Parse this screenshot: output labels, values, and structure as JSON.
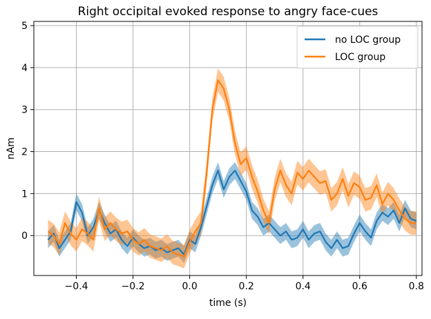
{
  "chart_data": {
    "type": "line",
    "title": "Right occipital evoked response to angry face-cues",
    "xlabel": "time (s)",
    "ylabel": "nAm",
    "xlim": [
      -0.55,
      0.82
    ],
    "ylim": [
      -0.95,
      5.1
    ],
    "xticks": [
      -0.4,
      -0.2,
      0.0,
      0.2,
      0.4,
      0.6,
      0.8
    ],
    "xtick_labels": [
      "−0.4",
      "−0.2",
      "0.0",
      "0.2",
      "0.4",
      "0.6",
      "0.8"
    ],
    "yticks": [
      0,
      1,
      2,
      3,
      4,
      5
    ],
    "ytick_labels": [
      "0",
      "1",
      "2",
      "3",
      "4",
      "5"
    ],
    "grid": true,
    "legend_position": "top-right",
    "x": [
      -0.5,
      -0.48,
      -0.46,
      -0.44,
      -0.42,
      -0.4,
      -0.38,
      -0.36,
      -0.34,
      -0.32,
      -0.3,
      -0.28,
      -0.26,
      -0.24,
      -0.22,
      -0.2,
      -0.18,
      -0.16,
      -0.14,
      -0.12,
      -0.1,
      -0.08,
      -0.06,
      -0.04,
      -0.02,
      0.0,
      0.02,
      0.04,
      0.06,
      0.08,
      0.1,
      0.12,
      0.14,
      0.16,
      0.18,
      0.2,
      0.22,
      0.24,
      0.26,
      0.28,
      0.3,
      0.32,
      0.34,
      0.36,
      0.38,
      0.4,
      0.42,
      0.44,
      0.46,
      0.48,
      0.5,
      0.52,
      0.54,
      0.56,
      0.58,
      0.6,
      0.62,
      0.64,
      0.66,
      0.68,
      0.7,
      0.72,
      0.74,
      0.76,
      0.78,
      0.8
    ],
    "series": [
      {
        "name": "no LOC group",
        "color": "#1f77b4",
        "values": [
          -0.1,
          0.05,
          -0.3,
          -0.1,
          0.1,
          0.8,
          0.55,
          0.0,
          0.2,
          0.6,
          0.3,
          0.05,
          0.15,
          -0.1,
          -0.25,
          -0.05,
          -0.2,
          -0.3,
          -0.25,
          -0.35,
          -0.3,
          -0.4,
          -0.35,
          -0.3,
          -0.45,
          -0.1,
          -0.2,
          0.2,
          0.7,
          1.2,
          1.55,
          1.1,
          1.4,
          1.55,
          1.3,
          1.05,
          0.6,
          0.45,
          0.2,
          0.3,
          0.15,
          0.0,
          0.1,
          -0.1,
          -0.05,
          0.15,
          -0.1,
          0.05,
          0.1,
          -0.15,
          -0.3,
          -0.1,
          -0.3,
          -0.25,
          0.05,
          0.3,
          0.1,
          -0.05,
          0.35,
          0.55,
          0.45,
          0.6,
          0.3,
          0.65,
          0.4,
          0.35
        ]
      },
      {
        "name": "LOC group",
        "color": "#ff7f0e",
        "values": [
          0.1,
          0.0,
          -0.2,
          0.3,
          0.05,
          -0.1,
          0.15,
          0.05,
          -0.1,
          0.65,
          0.15,
          0.3,
          0.15,
          0.05,
          0.1,
          -0.1,
          -0.2,
          -0.1,
          -0.25,
          -0.3,
          -0.35,
          -0.25,
          -0.4,
          -0.45,
          -0.5,
          -0.15,
          0.1,
          0.3,
          1.5,
          3.0,
          3.7,
          3.5,
          3.0,
          2.2,
          1.7,
          1.85,
          1.4,
          1.05,
          0.6,
          0.3,
          1.1,
          1.55,
          1.2,
          1.0,
          1.5,
          1.35,
          1.55,
          1.4,
          1.25,
          1.3,
          0.85,
          1.0,
          1.35,
          0.95,
          1.25,
          1.15,
          0.85,
          0.9,
          1.2,
          0.75,
          1.0,
          0.85,
          0.6,
          0.4,
          0.3,
          0.3
        ]
      }
    ],
    "ci_halfwidth": {
      "no LOC group": 0.2,
      "LOC group": 0.28
    }
  }
}
